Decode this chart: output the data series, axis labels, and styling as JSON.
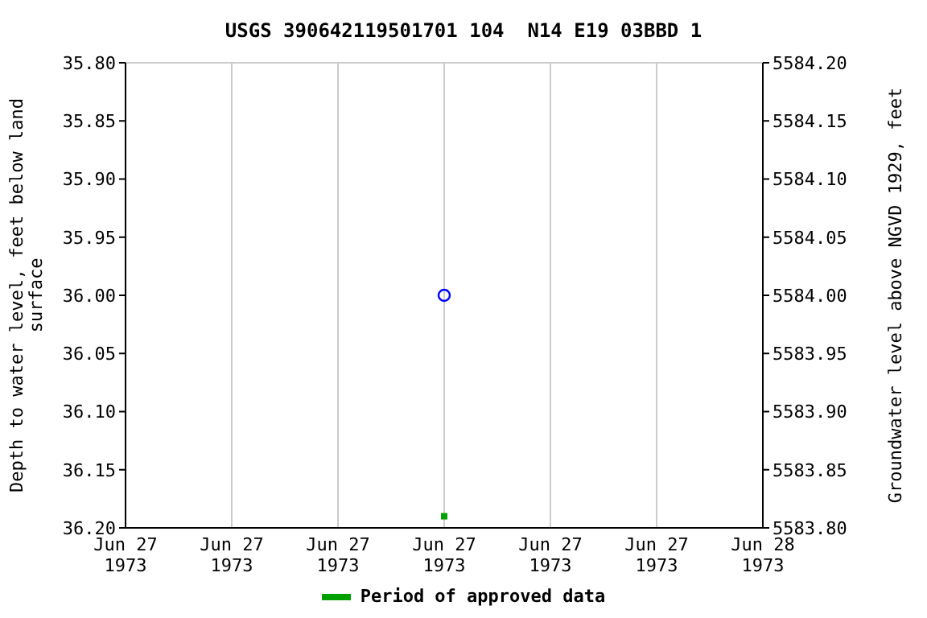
{
  "chart_data": {
    "type": "scatter",
    "title": "USGS 390642119501701 104  N14 E19 03BBD 1",
    "ylabel": "Depth to water level, feet below land surface",
    "y2label": "Groundwater level above NGVD 1929, feet",
    "xlim": [
      "1973-06-27T00:00",
      "1973-06-28T00:00"
    ],
    "xticks": [
      {
        "value": "1973-06-27T00:00",
        "label": "Jun 27 1973"
      },
      {
        "value": "1973-06-27T04:00",
        "label": "Jun 27 1973"
      },
      {
        "value": "1973-06-27T08:00",
        "label": "Jun 27 1973"
      },
      {
        "value": "1973-06-27T12:00",
        "label": "Jun 27 1973"
      },
      {
        "value": "1973-06-27T16:00",
        "label": "Jun 27 1973"
      },
      {
        "value": "1973-06-27T20:00",
        "label": "Jun 27 1973"
      },
      {
        "value": "1973-06-28T00:00",
        "label": "Jun 28 1973"
      }
    ],
    "ylim": [
      36.2,
      35.8
    ],
    "yticks": [
      {
        "value": 35.8,
        "label": "35.80"
      },
      {
        "value": 35.85,
        "label": "35.85"
      },
      {
        "value": 35.9,
        "label": "35.90"
      },
      {
        "value": 35.95,
        "label": "35.95"
      },
      {
        "value": 36.0,
        "label": "36.00"
      },
      {
        "value": 36.05,
        "label": "36.05"
      },
      {
        "value": 36.1,
        "label": "36.10"
      },
      {
        "value": 36.15,
        "label": "36.15"
      },
      {
        "value": 36.2,
        "label": "36.20"
      }
    ],
    "y2lim": [
      5583.8,
      5584.2
    ],
    "y2ticks": [
      {
        "value": 5583.8,
        "label": "5583.80"
      },
      {
        "value": 5583.85,
        "label": "5583.85"
      },
      {
        "value": 5583.9,
        "label": "5583.90"
      },
      {
        "value": 5583.95,
        "label": "5583.95"
      },
      {
        "value": 5584.0,
        "label": "5584.00"
      },
      {
        "value": 5584.05,
        "label": "5584.05"
      },
      {
        "value": 5584.1,
        "label": "5584.10"
      },
      {
        "value": 5584.15,
        "label": "5584.15"
      },
      {
        "value": 5584.2,
        "label": "5584.20"
      }
    ],
    "grid": true,
    "legend": "bottom",
    "series": [
      {
        "color": "#0000ff",
        "marker": "circle",
        "x": [
          "1973-06-27T12:00"
        ],
        "values": [
          36.0
        ]
      },
      {
        "name": "Period of approved data",
        "color": "#00a000",
        "marker": "square",
        "x": [
          "1973-06-27T12:00"
        ],
        "values": [
          36.19
        ]
      }
    ]
  }
}
